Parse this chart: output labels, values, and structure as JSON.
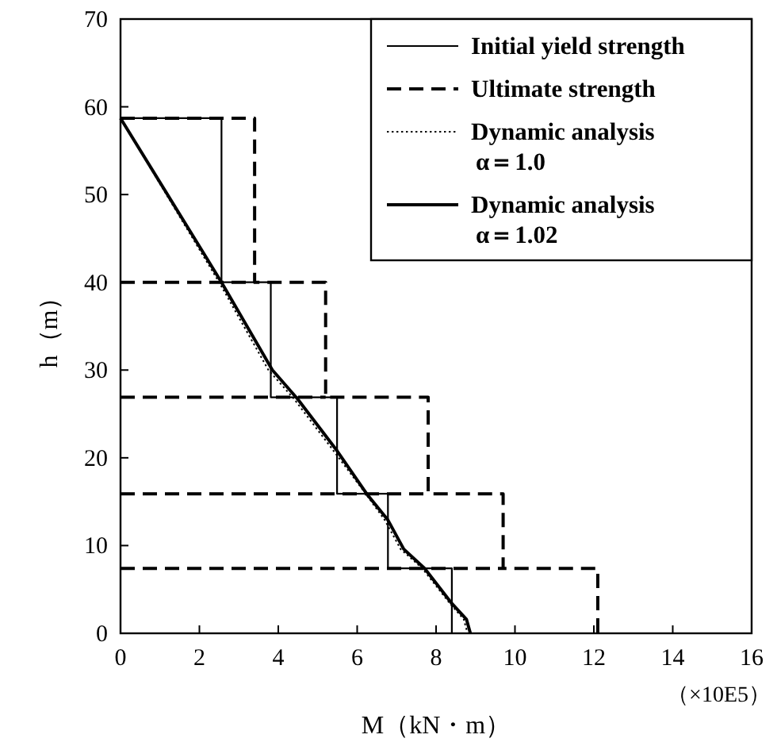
{
  "chart_data": {
    "type": "line",
    "xlabel": "M（kN・m）",
    "ylabel": "h（m）",
    "annotations": [
      "（×10E5）"
    ],
    "xlim": [
      0,
      16
    ],
    "ylim": [
      0,
      70
    ],
    "xticks": [
      0,
      2,
      4,
      6,
      8,
      10,
      12,
      14,
      16
    ],
    "yticks": [
      0,
      10,
      20,
      30,
      40,
      50,
      60,
      70
    ],
    "legend": "top right",
    "grid": false,
    "series": [
      {
        "name": "Initial yield strength",
        "color": "#000000",
        "line_style": "solid",
        "x": [
          0,
          2.56,
          2.56,
          3.81,
          3.81,
          5.49,
          5.49,
          6.78,
          6.78,
          8.4,
          8.4
        ],
        "values": [
          58.7,
          58.7,
          40,
          40,
          26.9,
          26.9,
          15.9,
          15.9,
          7.4,
          7.4,
          0
        ]
      },
      {
        "name": "Ultimate strength",
        "color": "#000000",
        "line_style": "dashed",
        "x": [
          0,
          3.4,
          3.4,
          5.2,
          5.2,
          7.8,
          7.8,
          9.7,
          9.7,
          12.1,
          12.1,
          null,
          0,
          3.4,
          null,
          0,
          5.2,
          null,
          0,
          7.8,
          null,
          0,
          9.7
        ],
        "values": [
          58.7,
          58.7,
          40,
          40,
          26.9,
          26.9,
          15.9,
          15.9,
          7.4,
          7.4,
          0,
          null,
          40,
          40,
          null,
          26.9,
          26.9,
          null,
          15.9,
          15.9,
          null,
          7.4,
          7.4
        ]
      },
      {
        "name": "Dynamic analysis\nα＝1.0",
        "color": "#000000",
        "line_style": "dotted",
        "x": [
          0,
          2.5,
          3.75,
          4.4,
          5.4,
          6.2,
          6.7,
          7.1,
          7.65,
          8.35,
          8.7,
          8.8
        ],
        "values": [
          58.7,
          40,
          30,
          26.7,
          20.8,
          16,
          12.9,
          9.6,
          7.4,
          3.4,
          1.6,
          0
        ]
      },
      {
        "name": "Dynamic analysis\nα＝1.02",
        "color": "#000000",
        "line_style": "solid",
        "x": [
          0,
          2.56,
          3.85,
          4.49,
          5.49,
          6.24,
          6.78,
          7.18,
          7.71,
          8.4,
          8.77,
          8.87
        ],
        "values": [
          58.7,
          40,
          30,
          26.7,
          20.8,
          15.9,
          12.9,
          9.6,
          7.4,
          3.4,
          1.6,
          0
        ]
      }
    ]
  }
}
